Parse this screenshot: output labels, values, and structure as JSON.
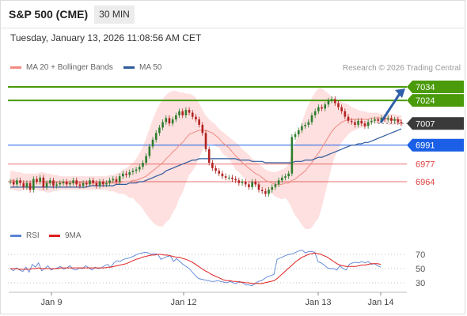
{
  "header": {
    "title": "S&P 500 (CME)",
    "timeframe": "30 MIN",
    "timestamp": "Tuesday, January 13, 2026 11:08:56 AM CET"
  },
  "legend": {
    "items": [
      {
        "label": "MA 20 + Bollinger Bands",
        "color": "#f08a82"
      },
      {
        "label": "MA 50",
        "color": "#2e5a9c"
      }
    ],
    "rsi_items": [
      {
        "label": "RSI",
        "color": "#5b84d6"
      },
      {
        "label": "9MA",
        "color": "#e02020"
      }
    ],
    "credit": "Research © 2026 Trading Central"
  },
  "colors": {
    "target": "#4a9a0a",
    "current": "#3a3a3a",
    "pivot": "#1a5fe6",
    "support": "#e04040",
    "arrow": "#2f5fa8",
    "candle": "#b22222",
    "candle_up": "#2e7d2e",
    "band": "#fde0df"
  },
  "chart_data": [
    {
      "type": "candlestick",
      "title": "S&P 500 (CME) 30 MIN",
      "x_tick_labels": [
        "Jan 9",
        "Jan 12",
        "Jan 13",
        "Jan 14"
      ],
      "ylim": [
        6938,
        7042
      ],
      "levels": [
        {
          "value": 7034,
          "label": "7034",
          "kind": "resistance"
        },
        {
          "value": 7024,
          "label": "7024",
          "kind": "resistance"
        },
        {
          "value": 7007,
          "label": "7007",
          "kind": "current"
        },
        {
          "value": 6991,
          "label": "6991",
          "kind": "pivot"
        },
        {
          "value": 6977,
          "label": "6977",
          "kind": "support"
        },
        {
          "value": 6964,
          "label": "6964",
          "kind": "support"
        }
      ],
      "price_close": [
        6964,
        6962,
        6965,
        6963,
        6960,
        6963,
        6958,
        6966,
        6964,
        6967,
        6960,
        6963,
        6965,
        6961,
        6962,
        6963,
        6964,
        6962,
        6963,
        6965,
        6962,
        6961,
        6963,
        6962,
        6965,
        6963,
        6961,
        6964,
        6962,
        6963,
        6965,
        6966,
        6964,
        6968,
        6970,
        6969,
        6971,
        6972,
        6973,
        6975,
        6978,
        6983,
        6990,
        6995,
        7000,
        7004,
        7008,
        7011,
        7007,
        7010,
        7013,
        7016,
        7013,
        7017,
        7015,
        7012,
        7010,
        7006,
        7000,
        6988,
        6978,
        6974,
        6972,
        6970,
        6968,
        6967,
        6967,
        6966,
        6965,
        6963,
        6964,
        6962,
        6960,
        6964,
        6962,
        6958,
        6957,
        6955,
        6958,
        6960,
        6962,
        6965,
        6967,
        6968,
        6970,
        6997,
        6999,
        7002,
        7005,
        7006,
        7008,
        7013,
        7016,
        7019,
        7018,
        7021,
        7024,
        7025,
        7022,
        7019,
        7016,
        7012,
        7009,
        7008,
        7006,
        7009,
        7007,
        7005,
        7008,
        7009,
        7010,
        7009,
        7011,
        7010,
        7011,
        7009,
        7010,
        7008,
        7007
      ],
      "ma20": [
        6965,
        6965,
        6964,
        6964,
        6964,
        6964,
        6964,
        6964,
        6964,
        6964,
        6964,
        6963,
        6963,
        6963,
        6963,
        6963,
        6963,
        6963,
        6963,
        6963,
        6963,
        6963,
        6963,
        6963,
        6963,
        6963,
        6963,
        6963,
        6963,
        6963,
        6963,
        6963,
        6963,
        6963,
        6964,
        6964,
        6964,
        6965,
        6965,
        6966,
        6967,
        6968,
        6970,
        6972,
        6974,
        6976,
        6978,
        6981,
        6983,
        6986,
        6988,
        6991,
        6993,
        6996,
        6999,
        7000,
        7001,
        7002,
        7002,
        7002,
        7001,
        7000,
        6998,
        6996,
        6993,
        6991,
        6989,
        6986,
        6983,
        6981,
        6978,
        6976,
        6974,
        6972,
        6970,
        6969,
        6967,
        6965,
        6964,
        6963,
        6962,
        6962,
        6962,
        6963,
        6963,
        6965,
        6966,
        6968,
        6970,
        6972,
        6975,
        6978,
        6982,
        6985,
        6989,
        6993,
        6997,
        7001,
        7004,
        7006,
        7008,
        7009,
        7010,
        7010,
        7010,
        7010,
        7010,
        7010,
        7010,
        7011,
        7011,
        7011,
        7011,
        7011,
        7010,
        7010,
        7010,
        7010,
        7009
      ],
      "bb_upper": [
        6972,
        6972,
        6971,
        6971,
        6970,
        6970,
        6970,
        6970,
        6970,
        6971,
        6971,
        6970,
        6970,
        6969,
        6969,
        6968,
        6968,
        6968,
        6968,
        6968,
        6968,
        6968,
        6968,
        6968,
        6968,
        6968,
        6968,
        6968,
        6968,
        6968,
        6969,
        6969,
        6970,
        6971,
        6973,
        6974,
        6976,
        6978,
        6981,
        6985,
        6990,
        6996,
        7003,
        7010,
        7016,
        7021,
        7025,
        7028,
        7030,
        7031,
        7031,
        7030,
        7030,
        7029,
        7029,
        7028,
        7026,
        7022,
        7017,
        7013,
        7010,
        7008,
        7006,
        7003,
        7001,
        6999,
        6997,
        6995,
        6993,
        6991,
        6988,
        6986,
        6984,
        6981,
        6979,
        6977,
        6975,
        6973,
        6972,
        6971,
        6971,
        6972,
        6973,
        6974,
        6977,
        6986,
        6993,
        7000,
        7008,
        7015,
        7021,
        7026,
        7030,
        7033,
        7033,
        7031,
        7029,
        7027,
        7025,
        7024,
        7023,
        7022,
        7021,
        7019,
        7018,
        7017,
        7016,
        7016,
        7015,
        7015,
        7015,
        7015,
        7014,
        7014,
        7014,
        7014,
        7014,
        7013,
        7013
      ],
      "bb_lower": [
        6958,
        6958,
        6957,
        6957,
        6958,
        6958,
        6958,
        6958,
        6958,
        6957,
        6957,
        6956,
        6956,
        6957,
        6957,
        6958,
        6958,
        6958,
        6958,
        6958,
        6958,
        6958,
        6958,
        6958,
        6958,
        6958,
        6958,
        6958,
        6958,
        6958,
        6957,
        6957,
        6956,
        6955,
        6955,
        6954,
        6952,
        6952,
        6949,
        6947,
        6944,
        6940,
        6937,
        6934,
        6932,
        6931,
        6931,
        6934,
        6936,
        6941,
        6945,
        6952,
        6956,
        6963,
        6969,
        6972,
        6976,
        6982,
        6987,
        6991,
        6992,
        6992,
        6990,
        6989,
        6985,
        6983,
        6981,
        6977,
        6973,
        6971,
        6968,
        6966,
        6964,
        6963,
        6961,
        6961,
        6959,
        6957,
        6956,
        6955,
        6953,
        6952,
        6951,
        6952,
        6949,
        6944,
        6939,
        6936,
        6932,
        6929,
        6929,
        6930,
        6934,
        6937,
        6945,
        6955,
        6965,
        6975,
        6983,
        6988,
        6993,
        6996,
        6999,
        7001,
        7002,
        7003,
        7004,
        7004,
        7005,
        7007,
        7007,
        7007,
        7008,
        7008,
        7006,
        7006,
        7006,
        7007,
        7005
      ],
      "ma50": [
        6960,
        6960,
        6960,
        6960,
        6960,
        6960,
        6960,
        6960,
        6960,
        6960,
        6960,
        6960,
        6960,
        6960,
        6960,
        6960,
        6960,
        6960,
        6960,
        6960,
        6960,
        6960,
        6960,
        6960,
        6961,
        6961,
        6961,
        6961,
        6961,
        6961,
        6961,
        6961,
        6962,
        6962,
        6962,
        6962,
        6963,
        6963,
        6963,
        6964,
        6964,
        6965,
        6966,
        6967,
        6968,
        6969,
        6970,
        6972,
        6973,
        6974,
        6975,
        6976,
        6977,
        6978,
        6979,
        6980,
        6980,
        6981,
        6981,
        6981,
        6981,
        6981,
        6981,
        6981,
        6981,
        6981,
        6981,
        6981,
        6981,
        6980,
        6980,
        6980,
        6980,
        6979,
        6979,
        6979,
        6979,
        6978,
        6978,
        6978,
        6978,
        6978,
        6978,
        6978,
        6978,
        6978,
        6979,
        6979,
        6979,
        6980,
        6980,
        6980,
        6981,
        6982,
        6982,
        6983,
        6984,
        6985,
        6986,
        6987,
        6988,
        6989,
        6990,
        6991,
        6991,
        6992,
        6992,
        6993,
        6993,
        6994,
        6995,
        6996,
        6997,
        6998,
        6999,
        7000,
        7001,
        7002,
        7003
      ],
      "projection": {
        "from": 7007,
        "to": 7034
      }
    },
    {
      "type": "line",
      "title": "RSI",
      "y_tick_labels": [
        "70",
        "50",
        "30"
      ],
      "ylim": [
        20,
        80
      ],
      "guides": [
        70,
        50,
        30
      ],
      "series": [
        {
          "name": "RSI",
          "values": [
            50,
            47,
            51,
            48,
            46,
            52,
            45,
            56,
            52,
            58,
            47,
            50,
            54,
            48,
            50,
            51,
            53,
            49,
            51,
            54,
            49,
            48,
            51,
            50,
            54,
            51,
            48,
            52,
            50,
            51,
            54,
            56,
            52,
            58,
            61,
            60,
            63,
            64,
            65,
            67,
            69,
            71,
            72,
            73,
            72,
            70,
            71,
            70,
            63,
            65,
            67,
            68,
            60,
            64,
            60,
            56,
            53,
            50,
            45,
            40,
            36,
            35,
            34,
            33,
            32,
            32,
            33,
            32,
            31,
            30,
            32,
            30,
            29,
            32,
            30,
            27,
            27,
            26,
            29,
            32,
            33,
            36,
            39,
            40,
            42,
            63,
            65,
            67,
            69,
            70,
            71,
            73,
            75,
            76,
            72,
            74,
            74,
            73,
            60,
            58,
            55,
            51,
            50,
            50,
            48,
            54,
            50,
            48,
            56,
            58,
            59,
            58,
            60,
            58,
            60,
            56,
            57,
            54,
            52
          ]
        },
        {
          "name": "9MA",
          "values": [
            50,
            50,
            50,
            49,
            49,
            49,
            49,
            50,
            50,
            51,
            50,
            50,
            50,
            50,
            50,
            50,
            51,
            51,
            51,
            51,
            51,
            51,
            51,
            51,
            51,
            51,
            51,
            51,
            51,
            51,
            51,
            52,
            52,
            53,
            54,
            55,
            56,
            57,
            59,
            61,
            63,
            64,
            66,
            67,
            68,
            69,
            69,
            70,
            70,
            69,
            69,
            68,
            67,
            66,
            66,
            64,
            63,
            61,
            59,
            56,
            53,
            50,
            47,
            45,
            42,
            40,
            38,
            36,
            34,
            33,
            33,
            32,
            32,
            31,
            31,
            30,
            30,
            29,
            29,
            29,
            29,
            30,
            31,
            32,
            33,
            36,
            40,
            44,
            48,
            52,
            56,
            60,
            63,
            66,
            68,
            70,
            71,
            72,
            71,
            70,
            68,
            66,
            63,
            60,
            57,
            55,
            54,
            53,
            53,
            53,
            53,
            54,
            55,
            55,
            56,
            57,
            57,
            57,
            56
          ]
        }
      ]
    }
  ]
}
